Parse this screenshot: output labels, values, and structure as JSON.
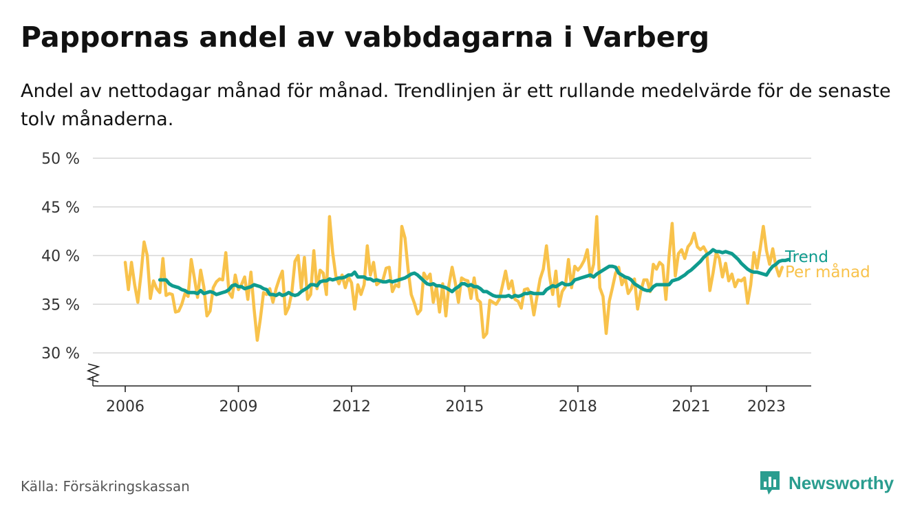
{
  "title": "Pappornas andel av vabbdagarna i Varberg",
  "subtitle": "Andel av nettodagar månad för månad. Trendlinjen är ett rullande medelvärde för de senaste tolv månaderna.",
  "source": "Källa: Försäkringskassan",
  "brand": "Newsworthy",
  "colors": {
    "monthly": "#f8c24b",
    "trend": "#0f9b8e",
    "grid": "#d6d6d6",
    "axis": "#222222",
    "brand": "#2a9d8f"
  },
  "chart_data": {
    "type": "line",
    "x_unit": "year",
    "ylim": [
      30,
      50
    ],
    "y_ticks": [
      30,
      35,
      40,
      45,
      50
    ],
    "y_tick_labels": [
      "30 %",
      "35 %",
      "40 %",
      "45 %",
      "50 %"
    ],
    "y_axis_broken": true,
    "x_ticks": [
      2006,
      2009,
      2012,
      2015,
      2018,
      2021,
      2023
    ],
    "x_tick_labels": [
      "2006",
      "2009",
      "2012",
      "2015",
      "2018",
      "2021",
      "2023"
    ],
    "grid": "horizontal",
    "series": [
      {
        "name": "Per månad",
        "x_start": 2006.0,
        "x_step": 0.08333,
        "values": [
          39.3,
          36.5,
          39.3,
          37.0,
          35.2,
          38.0,
          41.4,
          40.0,
          35.6,
          37.4,
          36.6,
          36.2,
          39.7,
          35.9,
          36.1,
          36.0,
          34.2,
          34.3,
          35.0,
          36.1,
          35.8,
          39.6,
          37.7,
          35.7,
          38.5,
          36.8,
          33.8,
          34.3,
          36.7,
          37.3,
          37.6,
          37.5,
          40.3,
          36.2,
          35.7,
          38.0,
          36.5,
          37.0,
          37.8,
          35.5,
          38.3,
          34.5,
          31.3,
          33.5,
          36.2,
          36.0,
          36.6,
          35.2,
          36.6,
          37.6,
          38.4,
          34.0,
          34.7,
          36.2,
          39.4,
          40.0,
          36.6,
          39.8,
          35.5,
          36.0,
          40.5,
          36.6,
          38.5,
          38.2,
          36.0,
          44.0,
          40.3,
          37.9,
          37.1,
          38.0,
          36.7,
          37.8,
          37.2,
          34.5,
          37.0,
          36.0,
          37.0,
          41.0,
          38.0,
          39.3,
          37.0,
          37.3,
          37.5,
          38.7,
          38.8,
          36.3,
          37.0,
          36.8,
          43.0,
          41.8,
          38.5,
          36.0,
          35.1,
          34.0,
          34.4,
          38.2,
          37.6,
          38.1,
          35.2,
          36.8,
          34.2,
          37.1,
          33.8,
          37.0,
          38.8,
          37.2,
          35.2,
          37.7,
          37.5,
          37.4,
          35.6,
          37.7,
          35.5,
          35.2,
          31.6,
          32.0,
          35.4,
          35.2,
          35.0,
          35.5,
          36.9,
          38.4,
          36.6,
          37.4,
          35.5,
          35.3,
          34.6,
          36.5,
          36.6,
          36.0,
          33.9,
          35.8,
          37.6,
          38.6,
          41.0,
          37.9,
          36.0,
          38.4,
          34.8,
          36.3,
          36.8,
          39.6,
          36.7,
          38.9,
          38.5,
          38.9,
          39.5,
          40.6,
          37.8,
          39.1,
          44.0,
          36.7,
          35.8,
          32.0,
          35.3,
          36.7,
          38.2,
          38.8,
          37.0,
          37.8,
          36.1,
          36.6,
          37.6,
          34.5,
          36.3,
          37.5,
          37.5,
          36.3,
          39.1,
          38.6,
          39.3,
          39.0,
          35.5,
          39.8,
          43.3,
          37.9,
          40.2,
          40.6,
          39.7,
          40.9,
          41.3,
          42.3,
          40.9,
          40.6,
          40.9,
          40.3,
          36.4,
          38.2,
          40.3,
          39.7,
          37.8,
          39.2,
          37.4,
          38.1,
          36.8,
          37.5,
          37.4,
          37.7,
          35.1,
          37.0,
          40.3,
          38.7,
          40.7,
          43.0,
          40.5,
          39.1,
          40.7,
          38.9,
          37.9,
          38.8
        ]
      },
      {
        "name": "Trend",
        "x_start": 2006.9167,
        "x_step": 0.08333,
        "values": [
          37.5,
          37.5,
          37.5,
          37.1,
          36.9,
          36.8,
          36.7,
          36.5,
          36.4,
          36.2,
          36.2,
          36.2,
          36.1,
          36.4,
          36.1,
          36.2,
          36.3,
          36.2,
          36.0,
          36.1,
          36.2,
          36.3,
          36.5,
          36.9,
          37.0,
          36.8,
          36.8,
          36.6,
          36.7,
          36.8,
          37.0,
          36.9,
          36.8,
          36.6,
          36.5,
          36.0,
          36.0,
          35.9,
          36.1,
          35.9,
          36.0,
          36.2,
          36.0,
          35.9,
          36.0,
          36.3,
          36.5,
          36.7,
          37.0,
          37.0,
          36.9,
          37.3,
          37.4,
          37.4,
          37.6,
          37.5,
          37.6,
          37.7,
          37.7,
          37.8,
          38.0,
          38.0,
          38.3,
          37.8,
          37.8,
          37.8,
          37.6,
          37.6,
          37.4,
          37.5,
          37.4,
          37.3,
          37.3,
          37.4,
          37.3,
          37.4,
          37.5,
          37.6,
          37.7,
          37.9,
          38.1,
          38.2,
          38.0,
          37.7,
          37.4,
          37.1,
          37.0,
          37.1,
          36.9,
          36.9,
          36.8,
          36.7,
          36.5,
          36.3,
          36.6,
          36.8,
          37.1,
          37.1,
          36.9,
          37.0,
          36.8,
          36.8,
          36.6,
          36.3,
          36.3,
          36.1,
          35.9,
          35.8,
          35.8,
          35.8,
          35.8,
          35.9,
          35.7,
          35.9,
          35.8,
          35.9,
          36.1,
          36.1,
          36.2,
          36.1,
          36.1,
          36.1,
          36.1,
          36.5,
          36.7,
          36.9,
          36.8,
          37.0,
          37.2,
          37.0,
          37.0,
          37.1,
          37.5,
          37.6,
          37.7,
          37.8,
          37.9,
          38.0,
          37.8,
          38.1,
          38.3,
          38.5,
          38.7,
          38.9,
          38.9,
          38.8,
          38.2,
          38.0,
          37.8,
          37.7,
          37.5,
          37.1,
          36.9,
          36.7,
          36.5,
          36.4,
          36.4,
          36.8,
          37.0,
          37.0,
          37.0,
          37.0,
          37.0,
          37.4,
          37.5,
          37.6,
          37.8,
          38.0,
          38.3,
          38.5,
          38.8,
          39.1,
          39.4,
          39.8,
          40.1,
          40.3,
          40.6,
          40.4,
          40.4,
          40.3,
          40.4,
          40.3,
          40.2,
          39.9,
          39.6,
          39.2,
          38.9,
          38.6,
          38.4,
          38.3,
          38.3,
          38.2,
          38.1,
          38.0,
          38.5,
          38.9,
          39.1,
          39.4,
          39.5,
          39.5,
          39.6
        ]
      }
    ],
    "series_labels": [
      "Trend",
      "Per månad"
    ]
  }
}
